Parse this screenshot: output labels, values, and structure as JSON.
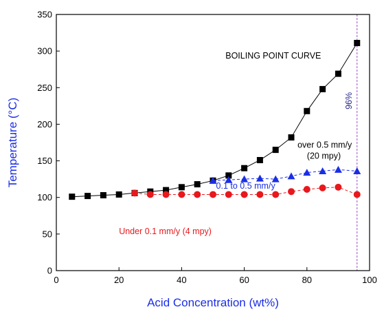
{
  "chart_data": {
    "type": "line",
    "xlabel": "Acid Concentration (wt%)",
    "ylabel": "Temperature (°C)",
    "xlim": [
      0,
      100
    ],
    "ylim": [
      0,
      350
    ],
    "xticks": [
      0,
      20,
      40,
      60,
      80,
      100
    ],
    "yticks": [
      0,
      50,
      100,
      150,
      200,
      250,
      300,
      350
    ],
    "grid": false,
    "colors": {
      "axis_label": "#1a2ee6",
      "black": "#000000",
      "blue": "#1a2ee6",
      "red": "#e8181c",
      "marker_line": "#9b4dca"
    },
    "series": [
      {
        "color": "#000000",
        "marker": "square",
        "x": [
          5,
          10,
          15,
          20,
          25,
          30,
          35,
          40,
          45,
          50,
          55,
          60,
          65,
          70,
          75,
          80,
          85,
          90,
          96
        ],
        "y": [
          101,
          102,
          103,
          104,
          106,
          108,
          110,
          114,
          118,
          123,
          130,
          140,
          151,
          165,
          182,
          218,
          248,
          269,
          311
        ]
      },
      {
        "color": "#1a2ee6",
        "marker": "triangle",
        "x": [
          50,
          55,
          60,
          65,
          70,
          75,
          80,
          85,
          90,
          96
        ],
        "y": [
          123,
          124,
          125,
          126,
          125,
          129,
          134,
          136,
          138,
          136
        ]
      },
      {
        "color": "#e8181c",
        "marker": "circle",
        "x": [
          25,
          30,
          35,
          40,
          45,
          50,
          55,
          60,
          65,
          70,
          75,
          80,
          85,
          90,
          96
        ],
        "y": [
          106,
          104,
          104,
          104,
          104,
          104,
          104,
          104,
          104,
          104,
          108,
          111,
          113,
          114,
          104
        ]
      }
    ],
    "reference_line": {
      "x": 96,
      "label": "96%",
      "color": "#9b4dca"
    },
    "annotations": [
      {
        "text": "BOILING POINT CURVE",
        "x": 54,
        "y": 290,
        "color": "#000000"
      },
      {
        "text": "over 0.5 mm/y",
        "x": 77,
        "y": 168,
        "color": "#000000"
      },
      {
        "text": "(20 mpy)",
        "x": 80,
        "y": 153,
        "color": "#000000"
      },
      {
        "text": "0.1 to 0.5 mm/y",
        "x": 51,
        "y": 112,
        "color": "#1a2ee6"
      },
      {
        "text": "Under 0.1 mm/y (4 mpy)",
        "x": 20,
        "y": 50,
        "color": "#e8181c"
      }
    ]
  }
}
